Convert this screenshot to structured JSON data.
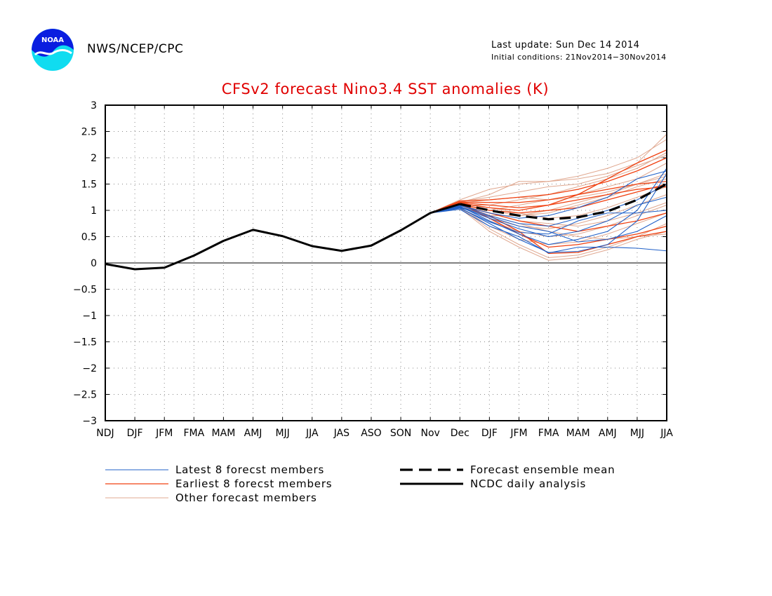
{
  "header": {
    "org": "NWS/NCEP/CPC",
    "last_update": "Last update: Sun Dec 14 2014",
    "initial_conditions": "Initial conditions: 21Nov2014−30Nov2014",
    "logo_text": "NOAA"
  },
  "colors": {
    "title": "#e00000",
    "latest": "#2060c8",
    "earliest": "#f04010",
    "other": "#e0a890",
    "analysis": "#000000",
    "mean": "#000000"
  },
  "chart_data": {
    "type": "line",
    "title": "CFSv2 forecast Nino3.4 SST anomalies (K)",
    "xlabel": "",
    "ylabel": "",
    "categories": [
      "NDJ",
      "DJF",
      "JFM",
      "FMA",
      "MAM",
      "AMJ",
      "MJJ",
      "JJA",
      "JAS",
      "ASO",
      "SON",
      "Nov",
      "Dec",
      "DJF",
      "JFM",
      "FMA",
      "MAM",
      "AMJ",
      "MJJ",
      "JJA"
    ],
    "ylim": [
      -3,
      3
    ],
    "yticks": [
      "3",
      "2.5",
      "2",
      "1.5",
      "1",
      "0.5",
      "0",
      "−0.5",
      "−1",
      "−1.5",
      "−2",
      "−2.5",
      "−3"
    ],
    "grid": true,
    "legend": {
      "placement": "bottom",
      "latest": "Latest 8 forecst members",
      "earliest": "Earliest 8 forecst members",
      "other": "Other forecast members",
      "mean": "Forecast ensemble mean",
      "analysis": "NCDC daily analysis"
    },
    "analysis": {
      "name": "NCDC daily analysis",
      "x": [
        0,
        1,
        2,
        3,
        4,
        5,
        6,
        7,
        8,
        9,
        10,
        11,
        12
      ],
      "values": [
        -0.02,
        -0.12,
        -0.09,
        0.14,
        0.42,
        0.63,
        0.51,
        0.32,
        0.23,
        0.33,
        0.62,
        0.95,
        1.12
      ]
    },
    "ensemble_mean": {
      "name": "Forecast ensemble mean",
      "x": [
        12,
        13,
        14,
        15,
        16,
        17,
        18,
        19
      ],
      "values": [
        1.12,
        1.0,
        0.9,
        0.83,
        0.87,
        0.98,
        1.2,
        1.5
      ]
    },
    "forecast_x": [
      11,
      12,
      13,
      14,
      15,
      16,
      17,
      18,
      19
    ],
    "members_latest": [
      [
        0.95,
        1.05,
        0.75,
        0.45,
        0.2,
        0.22,
        0.35,
        0.8,
        1.7
      ],
      [
        0.95,
        1.08,
        0.8,
        0.55,
        0.35,
        0.45,
        0.6,
        1.0,
        1.8
      ],
      [
        0.95,
        1.02,
        0.7,
        0.5,
        0.19,
        0.3,
        0.3,
        0.28,
        0.23
      ],
      [
        0.95,
        1.1,
        0.9,
        0.75,
        0.7,
        0.85,
        1.0,
        1.2,
        1.5
      ],
      [
        0.95,
        1.06,
        0.85,
        0.65,
        0.5,
        0.6,
        0.8,
        1.1,
        1.25
      ],
      [
        0.95,
        1.04,
        0.78,
        0.58,
        0.55,
        0.8,
        0.95,
        0.95,
        1.0
      ],
      [
        0.95,
        1.09,
        0.95,
        0.85,
        0.9,
        1.05,
        1.25,
        1.6,
        1.75
      ],
      [
        0.95,
        1.07,
        0.88,
        0.7,
        0.6,
        0.4,
        0.45,
        0.6,
        0.9
      ]
    ],
    "members_earliest": [
      [
        0.95,
        1.15,
        1.1,
        1.05,
        1.1,
        1.3,
        1.6,
        1.9,
        2.15
      ],
      [
        0.95,
        1.18,
        1.2,
        1.25,
        1.3,
        1.4,
        1.55,
        1.75,
        2.0
      ],
      [
        0.95,
        1.12,
        1.0,
        0.95,
        1.0,
        1.05,
        1.2,
        1.35,
        1.5
      ],
      [
        0.95,
        1.1,
        0.95,
        0.8,
        0.7,
        0.6,
        0.7,
        0.8,
        0.95
      ],
      [
        0.95,
        1.14,
        1.05,
        1.0,
        1.1,
        1.2,
        1.3,
        1.4,
        1.45
      ],
      [
        0.95,
        1.13,
        0.85,
        0.55,
        0.3,
        0.35,
        0.45,
        0.55,
        0.7
      ],
      [
        0.95,
        1.16,
        1.15,
        1.15,
        1.2,
        1.3,
        1.4,
        1.5,
        1.55
      ],
      [
        0.95,
        1.11,
        0.9,
        0.6,
        0.18,
        0.2,
        0.35,
        0.5,
        0.6
      ]
    ],
    "members_other": [
      [
        0.95,
        1.2,
        1.4,
        1.5,
        1.55,
        1.6,
        1.7,
        1.9,
        2.45
      ],
      [
        0.95,
        1.15,
        1.3,
        1.55,
        1.55,
        1.65,
        1.8,
        2.0,
        2.35
      ],
      [
        0.95,
        1.1,
        1.1,
        1.2,
        1.3,
        1.45,
        1.6,
        1.8,
        2.1
      ],
      [
        0.95,
        1.1,
        1.0,
        1.1,
        1.2,
        1.3,
        1.45,
        1.6,
        1.9
      ],
      [
        0.95,
        1.05,
        0.9,
        0.9,
        1.0,
        1.15,
        1.3,
        1.5,
        1.7
      ],
      [
        0.95,
        1.1,
        0.85,
        0.7,
        0.65,
        0.75,
        0.9,
        1.1,
        1.3
      ],
      [
        0.95,
        1.08,
        0.8,
        0.6,
        0.5,
        0.55,
        0.7,
        0.9,
        1.1
      ],
      [
        0.95,
        1.06,
        0.7,
        0.45,
        0.35,
        0.4,
        0.55,
        0.75,
        0.95
      ],
      [
        0.95,
        1.05,
        0.65,
        0.35,
        0.1,
        0.15,
        0.3,
        0.5,
        0.75
      ],
      [
        0.95,
        1.04,
        0.6,
        0.3,
        0.05,
        0.1,
        0.25,
        0.45,
        0.6
      ],
      [
        0.95,
        1.12,
        1.05,
        0.95,
        0.85,
        0.9,
        1.05,
        1.25,
        1.45
      ],
      [
        0.95,
        1.14,
        1.2,
        1.25,
        1.2,
        1.25,
        1.35,
        1.5,
        1.65
      ],
      [
        0.95,
        1.09,
        0.95,
        0.8,
        0.75,
        0.7,
        0.8,
        0.95,
        1.15
      ],
      [
        0.95,
        1.07,
        0.9,
        0.75,
        0.6,
        0.5,
        0.45,
        0.5,
        0.55
      ],
      [
        0.95,
        1.11,
        1.0,
        0.9,
        0.95,
        1.1,
        1.25,
        1.45,
        1.6
      ],
      [
        0.95,
        1.16,
        1.25,
        1.35,
        1.45,
        1.5,
        1.65,
        1.85,
        2.05
      ]
    ]
  }
}
